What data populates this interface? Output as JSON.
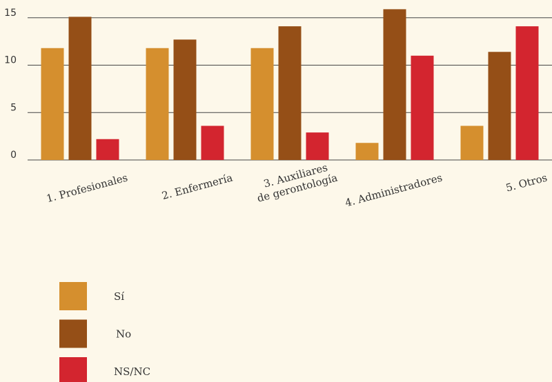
{
  "chart_data": {
    "type": "bar",
    "categories": [
      "1. Profesionales",
      "2. Enfermería",
      "3. Auxiliares\nde gerontología",
      "4. Administradores",
      "5. Otros"
    ],
    "series": [
      {
        "name": "Sí",
        "color": "#d58f2e",
        "values": [
          11.8,
          11.8,
          11.8,
          1.8,
          3.6
        ]
      },
      {
        "name": "No",
        "color": "#954f17",
        "values": [
          15.1,
          12.7,
          14.1,
          15.9,
          11.4
        ]
      },
      {
        "name": "NS/NC",
        "color": "#d3252f",
        "values": [
          2.2,
          3.6,
          2.9,
          11.0,
          14.1
        ]
      }
    ],
    "ylim": [
      0,
      16
    ],
    "yticks": [
      0,
      5,
      10,
      15
    ],
    "grid": true
  }
}
